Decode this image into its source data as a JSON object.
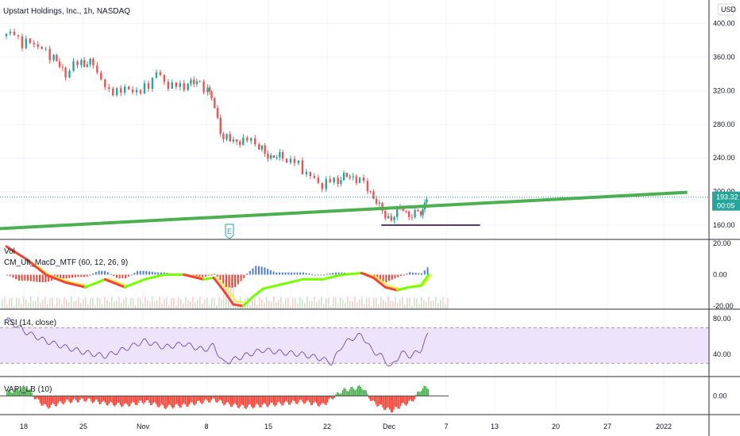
{
  "header": {
    "symbol_title": "Upstart Holdings, Inc., 1h, NASDAQ",
    "currency": "USD"
  },
  "colors": {
    "up": "#26a69a",
    "down": "#ef5350",
    "trendline": "#4caf50",
    "support_line": "#5b3a6e",
    "price_tag": "#26a69a",
    "rsi_line": "#7e57c2",
    "rsi_band": "#ede4fb",
    "macd_bull": "#76ff03",
    "macd_bear": "#f44336",
    "macd_signal": "#ffeb3b",
    "vap_pos": "#4caf50",
    "vap_neg": "#f44336"
  },
  "price_tag": {
    "price": "193.32",
    "countdown": "00:05"
  },
  "panes": {
    "volume_label": "Vol",
    "macd_label": "CM_Ult_MacD_MTF (60, 12, 26, 9)",
    "rsi_label": "RSI (14, close)",
    "vap_label": "VAPI_LB (10)",
    "earnings_marker": "E"
  },
  "chart_data": [
    {
      "type": "candlestick",
      "title": "Upstart Holdings, Inc., 1h, NASDAQ",
      "y_ticks": [
        "400.00",
        "360.00",
        "320.00",
        "280.00",
        "240.00",
        "200.00",
        "160.00"
      ],
      "ylim": [
        143,
        428
      ],
      "x_ticks": [
        "18",
        "25",
        "Nov",
        "8",
        "15",
        "22",
        "Dec",
        "7",
        "13",
        "20",
        "27",
        "2022"
      ],
      "close_path": [
        [
          0,
          385
        ],
        [
          0.4,
          392
        ],
        [
          0.8,
          372
        ],
        [
          1.2,
          382
        ],
        [
          1.6,
          370
        ],
        [
          2.0,
          368
        ],
        [
          2.4,
          358
        ],
        [
          3.0,
          340
        ],
        [
          3.4,
          350
        ],
        [
          3.8,
          355
        ],
        [
          4.4,
          350
        ],
        [
          4.8,
          335
        ],
        [
          5.2,
          316
        ],
        [
          5.6,
          322
        ],
        [
          6.0,
          320
        ],
        [
          6.4,
          322
        ],
        [
          6.8,
          318
        ],
        [
          7.2,
          328
        ],
        [
          7.6,
          342
        ],
        [
          8.0,
          330
        ],
        [
          8.4,
          326
        ],
        [
          8.8,
          325
        ],
        [
          9.2,
          328
        ],
        [
          9.8,
          330
        ],
        [
          10.2,
          318
        ],
        [
          10.4,
          312
        ],
        [
          11.0,
          262
        ],
        [
          11.5,
          262
        ],
        [
          12.0,
          258
        ],
        [
          12.4,
          265
        ],
        [
          12.8,
          250
        ],
        [
          13.4,
          242
        ],
        [
          14.0,
          240
        ],
        [
          14.4,
          237
        ],
        [
          14.8,
          232
        ],
        [
          15.2,
          222
        ],
        [
          15.6,
          214
        ],
        [
          16.0,
          208
        ],
        [
          16.4,
          212
        ],
        [
          16.8,
          215
        ],
        [
          17.4,
          218
        ],
        [
          17.9,
          215
        ],
        [
          18.3,
          203
        ],
        [
          18.6,
          195
        ],
        [
          18.9,
          180
        ],
        [
          19.2,
          172
        ],
        [
          19.5,
          168
        ],
        [
          19.8,
          175
        ],
        [
          20.1,
          182
        ],
        [
          20.4,
          170
        ],
        [
          20.7,
          172
        ],
        [
          21.0,
          178
        ],
        [
          21.2,
          185
        ],
        [
          21.4,
          193.32
        ]
      ],
      "annotations": {
        "trendline": {
          "from": [
            -1,
            155
          ],
          "to": [
            34.5,
            199
          ]
        },
        "support_line": {
          "from": [
            19,
            160
          ],
          "to": [
            24,
            160
          ]
        },
        "last_price": 193.32
      }
    },
    {
      "type": "histogram+line",
      "title": "CM_Ult_MacD_MTF (60, 12, 26, 9)",
      "y_ticks": [
        "20.00",
        "0.00",
        "-20.00"
      ],
      "ylim": [
        -22,
        22
      ],
      "macd_path": [
        [
          0,
          18
        ],
        [
          1,
          10
        ],
        [
          2,
          0
        ],
        [
          3,
          -5
        ],
        [
          4,
          -8
        ],
        [
          5,
          -3
        ],
        [
          6,
          -8
        ],
        [
          7,
          -3
        ],
        [
          8,
          0
        ],
        [
          9,
          0
        ],
        [
          10,
          -3
        ],
        [
          10.5,
          -2
        ],
        [
          11,
          -10
        ],
        [
          11.5,
          -19
        ],
        [
          12,
          -20
        ],
        [
          12.5,
          -14
        ],
        [
          13,
          -9
        ],
        [
          14,
          -6
        ],
        [
          15,
          -3
        ],
        [
          16,
          -3
        ],
        [
          17,
          0
        ],
        [
          18,
          1
        ],
        [
          18.6,
          -2
        ],
        [
          19.2,
          -8
        ],
        [
          19.8,
          -10
        ],
        [
          20.4,
          -8
        ],
        [
          21,
          -7
        ],
        [
          21.4,
          0
        ]
      ]
    },
    {
      "type": "line",
      "title": "RSI (14, close)",
      "y_ticks": [
        "80.00",
        "40.00"
      ],
      "ylim": [
        15,
        90
      ],
      "band": [
        30,
        70
      ],
      "rsi_path": [
        [
          0,
          80
        ],
        [
          1,
          65
        ],
        [
          2,
          55
        ],
        [
          3,
          48
        ],
        [
          4,
          42
        ],
        [
          5,
          38
        ],
        [
          6,
          46
        ],
        [
          7,
          55
        ],
        [
          8,
          48
        ],
        [
          9,
          52
        ],
        [
          10,
          45
        ],
        [
          10.5,
          50
        ],
        [
          11,
          30
        ],
        [
          12,
          38
        ],
        [
          13,
          45
        ],
        [
          14,
          42
        ],
        [
          15,
          40
        ],
        [
          16,
          35
        ],
        [
          16.5,
          30
        ],
        [
          17,
          50
        ],
        [
          17.5,
          58
        ],
        [
          18,
          62
        ],
        [
          18.5,
          45
        ],
        [
          19,
          38
        ],
        [
          19.5,
          25
        ],
        [
          20,
          42
        ],
        [
          20.5,
          38
        ],
        [
          21,
          45
        ],
        [
          21.4,
          64
        ]
      ]
    },
    {
      "type": "area",
      "title": "VAPI_LB (10)",
      "y_ticks": [
        "0.00"
      ],
      "ylim": [
        -1,
        1
      ],
      "vapi_path": [
        [
          0,
          0.2
        ],
        [
          1,
          0.5
        ],
        [
          1.5,
          -0.2
        ],
        [
          2,
          -0.6
        ],
        [
          3,
          -0.3
        ],
        [
          4,
          -0.2
        ],
        [
          5,
          -0.4
        ],
        [
          6,
          -0.5
        ],
        [
          7,
          -0.3
        ],
        [
          8,
          -0.6
        ],
        [
          9,
          -0.5
        ],
        [
          10,
          -0.3
        ],
        [
          10.5,
          -0.2
        ],
        [
          11,
          -0.4
        ],
        [
          12,
          -0.6
        ],
        [
          13,
          -0.5
        ],
        [
          14,
          -0.4
        ],
        [
          15,
          -0.3
        ],
        [
          16,
          -0.5
        ],
        [
          17,
          0.3
        ],
        [
          18,
          0.5
        ],
        [
          18.5,
          -0.3
        ],
        [
          19,
          -0.6
        ],
        [
          19.5,
          -0.8
        ],
        [
          20,
          -0.5
        ],
        [
          20.5,
          -0.3
        ],
        [
          21,
          0.4
        ],
        [
          21.4,
          0.5
        ]
      ]
    }
  ]
}
